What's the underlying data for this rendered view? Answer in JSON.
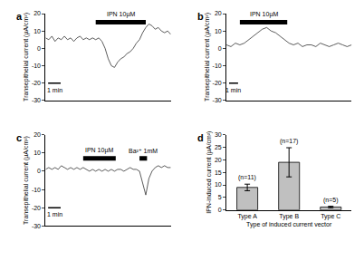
{
  "chart_data": [
    {
      "type": "line",
      "title": "a",
      "x": [
        0,
        0.25,
        0.5,
        0.75,
        1,
        1.25,
        1.5,
        1.75,
        2,
        2.25,
        2.5,
        2.75,
        3,
        3.25,
        3.5,
        3.75,
        4,
        4.25,
        4.5,
        4.75,
        5,
        5.25,
        5.5,
        5.75,
        6,
        6.25,
        6.5,
        6.75,
        7,
        7.25,
        7.5,
        7.75,
        8,
        8.25,
        8.5,
        8.75,
        9,
        9.25,
        9.5,
        9.75,
        10
      ],
      "values": [
        6,
        5,
        7,
        4,
        6,
        5,
        7,
        5,
        6,
        4,
        6,
        7,
        5,
        6,
        5,
        6,
        5,
        6,
        4,
        0,
        -6,
        -10,
        -11,
        -8,
        -6,
        -5,
        -3,
        -2,
        0,
        3,
        5,
        9,
        12,
        14,
        13,
        11,
        12,
        10,
        9,
        10,
        8
      ],
      "color": "#333333",
      "xlim": [
        0,
        10
      ],
      "ylim": [
        -30,
        20
      ],
      "yticks": [
        -30,
        -20,
        -10,
        0,
        10,
        20
      ],
      "y_label": "Transepithelial current (µA/cm²)",
      "tick_labels": "y",
      "drug_bars": [
        {
          "text": "IPN 10µM",
          "x": [
            4,
            8
          ],
          "y": 15
        }
      ],
      "scale_bar": {
        "text": "1 min",
        "x": [
          0.2,
          1.2
        ],
        "y": -20
      }
    },
    {
      "type": "line",
      "title": "b",
      "x": [
        0,
        0.5,
        1,
        1.5,
        2,
        2.5,
        3,
        3.5,
        4,
        4.5,
        5,
        5.5,
        6,
        6.5,
        7,
        7.5,
        8,
        8.5,
        9,
        9.5,
        10,
        10.5,
        11,
        11.5,
        12,
        12.5,
        13,
        13.5,
        14
      ],
      "values": [
        2,
        1,
        3,
        2,
        3,
        5,
        7,
        9,
        11,
        12,
        10,
        9,
        7,
        5,
        3,
        2,
        3,
        1,
        2,
        2,
        1,
        3,
        2,
        1,
        2,
        3,
        2,
        1,
        2
      ],
      "color": "#333333",
      "xlim": [
        0,
        14
      ],
      "ylim": [
        -30,
        20
      ],
      "yticks": [
        -30,
        -20,
        -10,
        0,
        10,
        20
      ],
      "y_label": "Transepithelial current (µA/cm²)",
      "tick_labels": "y",
      "drug_bars": [
        {
          "text": "IPN 10µM",
          "x": [
            1.5,
            6.8
          ],
          "y": 15
        }
      ],
      "scale_bar": {
        "text": "1 min",
        "x": [
          0.3,
          1.3
        ],
        "y": -20
      }
    },
    {
      "type": "line",
      "title": "c",
      "x": [
        0,
        0.25,
        0.5,
        0.75,
        1,
        1.25,
        1.5,
        1.75,
        2,
        2.25,
        2.5,
        2.75,
        3,
        3.25,
        3.5,
        3.75,
        4,
        4.25,
        4.5,
        4.75,
        5,
        5.25,
        5.5,
        5.75,
        6,
        6.25,
        6.5,
        6.75,
        7,
        7.25,
        7.5,
        7.75,
        8,
        8.25,
        8.5,
        8.75,
        9,
        9.25,
        9.5,
        9.75,
        10
      ],
      "values": [
        1,
        2,
        1,
        2,
        1,
        3,
        2,
        1,
        2,
        1,
        2,
        1,
        2,
        1,
        0,
        1,
        0,
        1,
        0,
        1,
        0,
        1,
        0,
        1,
        1,
        0,
        1,
        2,
        1,
        1,
        0,
        -6,
        -13,
        -4,
        0,
        2,
        3,
        2,
        3,
        2,
        2
      ],
      "color": "#333333",
      "xlim": [
        0,
        10
      ],
      "ylim": [
        -30,
        20
      ],
      "yticks": [
        -30,
        -20,
        -10,
        0,
        10,
        20
      ],
      "y_label": "Transepithelial current (µA/cm²)",
      "tick_labels": "y",
      "drug_bars": [
        {
          "text": "IPN 10µM",
          "x": [
            3,
            5.6
          ],
          "y": 7
        },
        {
          "text": "Ba²⁺ 1mM",
          "x": [
            7.5,
            8.1
          ],
          "y": 7
        }
      ],
      "scale_bar": {
        "text": "1 min",
        "x": [
          0.2,
          1.2
        ],
        "y": -20
      }
    },
    {
      "type": "bar",
      "title": "d",
      "categories": [
        "Type A",
        "Type B",
        "Type C"
      ],
      "values": [
        9,
        19,
        1.2
      ],
      "errors": [
        1.3,
        5.8,
        0.3
      ],
      "n_labels": [
        "(n=11)",
        "(n=17)",
        "(n=5)"
      ],
      "color": "#c0c0c0",
      "ylim": [
        0,
        30
      ],
      "yticks": [
        0,
        5,
        10,
        15,
        20,
        25,
        30
      ],
      "y_label": "IPN-induced current (µA/cm²)",
      "x_label": "Type of induced current vector"
    }
  ]
}
